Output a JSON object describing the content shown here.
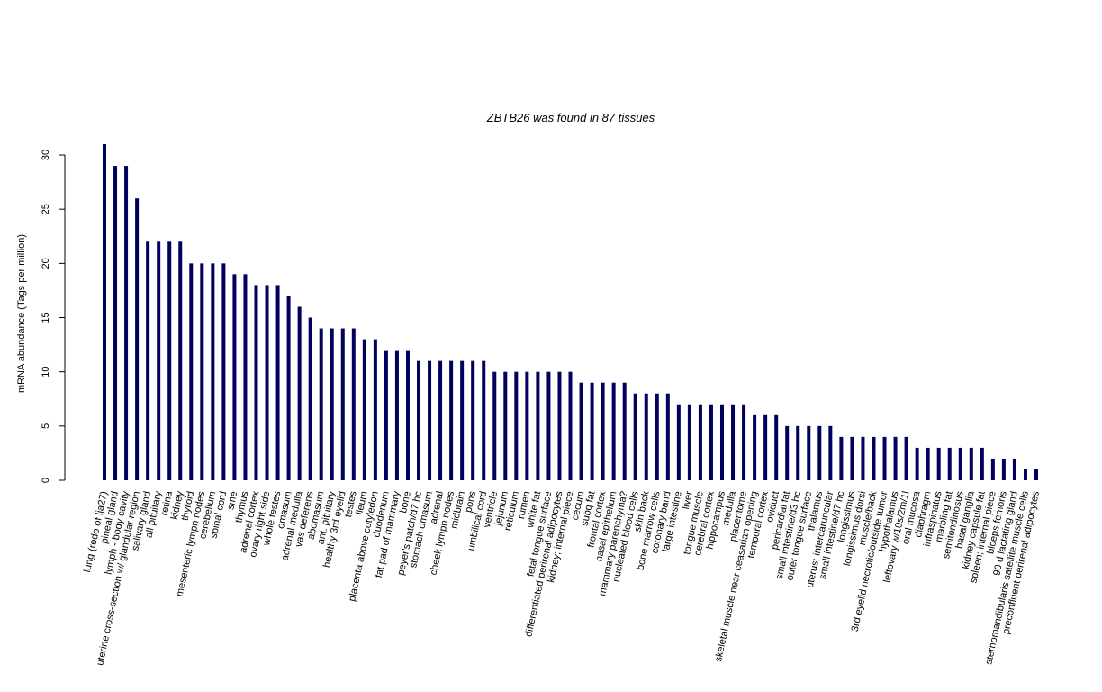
{
  "chart_data": {
    "type": "bar",
    "title": "ZBTB26  was found in  87  tissues",
    "y_label": "mRNA abundance (Tags per million)",
    "color": "#00005e",
    "ylim": [
      0,
      31
    ],
    "yticks": [
      0,
      5,
      10,
      15,
      20,
      25,
      30
    ],
    "categories": [
      "lung (redo of lja27)",
      "pineal gland",
      "lymph - body cavity",
      "uterine cross-section w/ glandular region",
      "salivary gland",
      "all pituitary",
      "retina",
      "kidney",
      "thyroid",
      "mesenteric lymph nodes",
      "cerebellum",
      "spinal cord",
      "sme",
      "thymus",
      "adrenal cortex",
      "ovary right side",
      "whole testes",
      "omasum",
      "adrenal medulla",
      "vas deferens",
      "abomasum",
      "ant. pituitary",
      "healthy 3rd eyelid",
      "testes",
      "ileum",
      "placenta above cotyledon",
      "duodenum",
      "fat pad of mammary",
      "bone",
      "peyer's patch/d7 hc",
      "stomach omasum",
      "adrenal",
      "cheek lymph nodes",
      "midbrain",
      "pons",
      "umbilical cord",
      "ventricle",
      "jejunum",
      "reticulum",
      "rumen",
      "white fat",
      "fetal tongue surface",
      "differentiated perirenal adipocytes",
      "kidney; internal piece",
      "cecum",
      "subq fat",
      "frontal cortex",
      "nasal epithelium",
      "mammary parenchyma?",
      "nucleated blood cells",
      "skin back",
      "bone marrow cells",
      "coronary band",
      "large intestine",
      "liver",
      "tongue muscle",
      "cerebral cortex",
      "hippocampus",
      "medulla",
      "placentome",
      "skeletal muscle near ceasarian opening",
      "temporal cortex",
      "oviduct",
      "pericardial fat",
      "small intestine/d3 hc",
      "outer tongue surface",
      "thalamus",
      "uterus; intercaruncular",
      "small intestine/d7 hc",
      "longissimus",
      "longissimus dorsi",
      "muscle/back",
      "3rd eyelid necrotic/outside tumor",
      "hypothalamus",
      "leftovary w/10s/2m/1l",
      "oral mucosa",
      "diaphragm",
      "infraspinatus",
      "marbling fat",
      "semitendinosus",
      "basal ganglia",
      "kidney capsule fat",
      "spleen; internal piece",
      "biceps femoris",
      "90 d lactating gland",
      "sternomandibularis satellite muscle cells",
      "preconfluent perirenal adipocytes"
    ],
    "values": [
      31,
      29,
      29,
      26,
      22,
      22,
      22,
      22,
      20,
      20,
      20,
      20,
      19,
      19,
      18,
      18,
      18,
      17,
      16,
      15,
      14,
      14,
      14,
      14,
      13,
      13,
      12,
      12,
      12,
      11,
      11,
      11,
      11,
      11,
      11,
      11,
      10,
      10,
      10,
      10,
      10,
      10,
      10,
      10,
      9,
      9,
      9,
      9,
      9,
      8,
      8,
      8,
      8,
      7,
      7,
      7,
      7,
      7,
      7,
      7,
      6,
      6,
      6,
      5,
      5,
      5,
      5,
      5,
      4,
      4,
      4,
      4,
      4,
      4,
      4,
      3,
      3,
      3,
      3,
      3,
      3,
      3,
      2,
      2,
      2,
      1,
      1
    ]
  }
}
